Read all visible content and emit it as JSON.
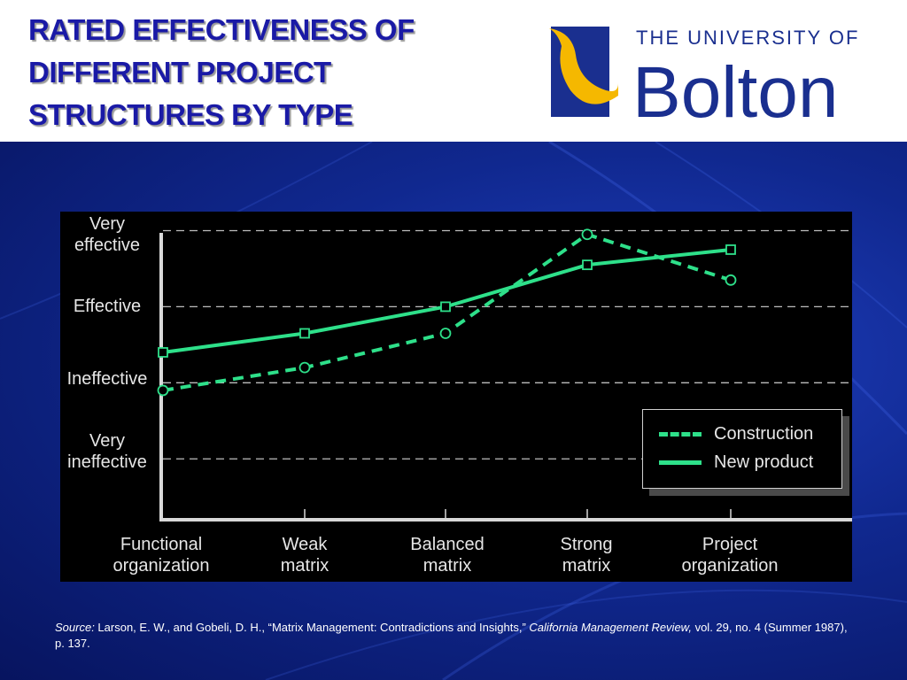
{
  "slide": {
    "title": "RATED EFFECTIVENESS OF\nDIFFERENT PROJECT\nSTRUCTURES BY TYPE",
    "title_color": "#1a1aa6",
    "logo": {
      "line1": "THE UNIVERSITY OF",
      "line2": "Bolton",
      "brand_color": "#1a2f8f",
      "accent_color": "#f5b800"
    }
  },
  "chart_data": {
    "type": "line",
    "title": "",
    "xlabel": "",
    "ylabel": "",
    "categories": [
      "Functional\norganization",
      "Weak\nmatrix",
      "Balanced\nmatrix",
      "Strong\nmatrix",
      "Project\norganization"
    ],
    "y_levels": [
      "Very\nineffective",
      "Ineffective",
      "Effective",
      "Very\neffective"
    ],
    "ylim": [
      0.2,
      4.25
    ],
    "grid": "dashed horizontal at each level",
    "legend_position": "lower-right",
    "series": [
      {
        "name": "Construction",
        "style": "dashed",
        "marker": "circle",
        "color": "#2ee08a",
        "values": [
          1.9,
          2.2,
          2.65,
          3.95,
          3.35
        ]
      },
      {
        "name": "New product",
        "style": "solid",
        "marker": "square",
        "color": "#2ee08a",
        "values": [
          2.4,
          2.65,
          3.0,
          3.55,
          3.75
        ]
      }
    ]
  },
  "source": {
    "label": "Source:",
    "text1": " Larson, E. W., and Gobeli, D. H., “Matrix Management: Contradictions and Insights,” ",
    "journal": "California Management Review,",
    "text2": " vol. 29, no. 4 (Summer 1987), p. 137."
  }
}
